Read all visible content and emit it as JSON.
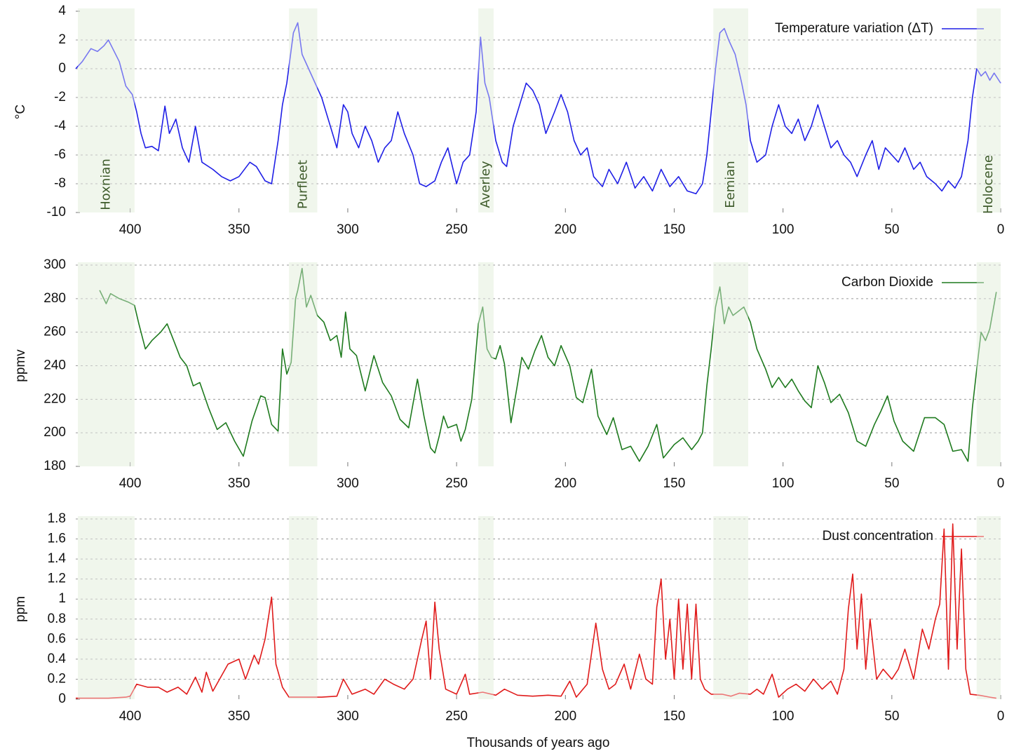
{
  "chart_data": [
    {
      "type": "line",
      "ylabel": "°C",
      "xlim": [
        425,
        0
      ],
      "xticks": [
        400,
        350,
        300,
        250,
        200,
        150,
        100,
        50,
        0
      ],
      "ylim": [
        -10,
        4
      ],
      "yticks": [
        4,
        2,
        0,
        -2,
        -4,
        -6,
        -8,
        -10
      ],
      "grid": true,
      "legend": "upper right",
      "band_color": "#e6f1e0",
      "shaded_periods": [
        {
          "label": "Hoxnian",
          "start": 424,
          "end": 398
        },
        {
          "label": "Purfleet",
          "start": 327,
          "end": 314
        },
        {
          "label": "Averley",
          "start": 240,
          "end": 233
        },
        {
          "label": "Eemian",
          "start": 132,
          "end": 116
        },
        {
          "label": "Holocene",
          "start": 11,
          "end": 0
        }
      ],
      "x": [
        425,
        422,
        418,
        415,
        412,
        410,
        408,
        405,
        402,
        399,
        397,
        395,
        393,
        390,
        387,
        384,
        382,
        379,
        376,
        373,
        370,
        367,
        362,
        358,
        354,
        350,
        345,
        342,
        338,
        335,
        332,
        330,
        328,
        325,
        323,
        321,
        318,
        315,
        312,
        308,
        305,
        302,
        300,
        298,
        295,
        292,
        289,
        286,
        283,
        280,
        277,
        274,
        270,
        267,
        264,
        260,
        257,
        254,
        250,
        247,
        244,
        241,
        239,
        237,
        235,
        232,
        229,
        227,
        224,
        221,
        218,
        215,
        212,
        209,
        205,
        202,
        199,
        196,
        193,
        190,
        187,
        183,
        180,
        176,
        172,
        168,
        164,
        160,
        156,
        152,
        148,
        144,
        140,
        137,
        135,
        133,
        131,
        129,
        127,
        125,
        122,
        119,
        117,
        115,
        112,
        108,
        105,
        102,
        99,
        96,
        93,
        90,
        87,
        84,
        81,
        78,
        75,
        72,
        69,
        66,
        62,
        59,
        56,
        53,
        50,
        47,
        44,
        40,
        37,
        34,
        30,
        27,
        24,
        21,
        18,
        15,
        13,
        11,
        9,
        7,
        5,
        3,
        0
      ],
      "series": [
        {
          "name": "Temperature variation (ΔT)",
          "color": "#1f1fe6",
          "values": [
            0,
            0.5,
            1.4,
            1.2,
            1.6,
            2.0,
            1.4,
            0.5,
            -1.2,
            -1.8,
            -3,
            -4.5,
            -5.5,
            -5.4,
            -5.7,
            -2.6,
            -4.5,
            -3.5,
            -5.5,
            -6.5,
            -4,
            -6.5,
            -7,
            -7.5,
            -7.8,
            -7.5,
            -6.5,
            -6.8,
            -7.8,
            -8,
            -5,
            -2.5,
            -1,
            2.5,
            3.2,
            1,
            0,
            -1,
            -2,
            -4,
            -5.5,
            -2.5,
            -3,
            -4.5,
            -5.5,
            -4,
            -5,
            -6.5,
            -5.5,
            -5,
            -3,
            -4.5,
            -6,
            -8,
            -8.2,
            -7.8,
            -6.5,
            -5.5,
            -8,
            -6.5,
            -6,
            -3,
            2.2,
            -1,
            -2,
            -5,
            -6.5,
            -6.8,
            -4,
            -2.5,
            -1,
            -1.5,
            -2.5,
            -4.5,
            -3,
            -1.8,
            -3,
            -5,
            -6,
            -5.5,
            -7.5,
            -8.2,
            -7,
            -8,
            -6.5,
            -8.3,
            -7.5,
            -8.5,
            -7,
            -8.2,
            -7.5,
            -8.5,
            -8.7,
            -8,
            -6,
            -3,
            0,
            2.5,
            2.8,
            2,
            1,
            -1,
            -2.5,
            -5,
            -6.5,
            -6,
            -4,
            -2.5,
            -4,
            -4.5,
            -3.5,
            -5,
            -4,
            -2.5,
            -4,
            -5.5,
            -5,
            -6,
            -6.5,
            -7.5,
            -6,
            -5,
            -7,
            -5.5,
            -6,
            -6.5,
            -5.5,
            -7,
            -6.5,
            -7.5,
            -8,
            -8.5,
            -7.8,
            -8.3,
            -7.5,
            -5,
            -2,
            0,
            -0.5,
            -0.2,
            -0.8,
            -0.3,
            -1
          ]
        }
      ]
    },
    {
      "type": "line",
      "ylabel": "ppmv",
      "xlim": [
        425,
        0
      ],
      "xticks": [
        400,
        350,
        300,
        250,
        200,
        150,
        100,
        50,
        0
      ],
      "ylim": [
        180,
        300
      ],
      "yticks": [
        300,
        280,
        260,
        240,
        220,
        200,
        180
      ],
      "grid": true,
      "legend": "upper right",
      "x": [
        414,
        411,
        409,
        405,
        401,
        398,
        396,
        393,
        390,
        386,
        383,
        380,
        377,
        374,
        371,
        368,
        364,
        360,
        356,
        352,
        348,
        344,
        340,
        338,
        335,
        332,
        330,
        328,
        326,
        324,
        323,
        321,
        319,
        317,
        314,
        311,
        308,
        305,
        303,
        301,
        299,
        296,
        292,
        288,
        284,
        280,
        276,
        272,
        268,
        265,
        262,
        260,
        258,
        256,
        254,
        250,
        248,
        246,
        243,
        240,
        238,
        236,
        234,
        232,
        230,
        228,
        225,
        222,
        220,
        217,
        214,
        211,
        208,
        205,
        202,
        198,
        195,
        192,
        188,
        185,
        181,
        178,
        174,
        170,
        166,
        162,
        158,
        155,
        150,
        146,
        142,
        139,
        137,
        135,
        133,
        131,
        129,
        127,
        125,
        123,
        121,
        118,
        115,
        112,
        108,
        105,
        102,
        99,
        96,
        93,
        90,
        87,
        84,
        81,
        78,
        74,
        70,
        66,
        62,
        58,
        55,
        52,
        49,
        45,
        40,
        35,
        30,
        26,
        22,
        18,
        15,
        13,
        11,
        9,
        7,
        5,
        2
      ],
      "series": [
        {
          "name": "Carbon Dioxide",
          "color": "#1e7a1e",
          "values": [
            285,
            277,
            283,
            280,
            278,
            276,
            265,
            250,
            255,
            260,
            265,
            255,
            245,
            240,
            228,
            230,
            215,
            202,
            206,
            195,
            186,
            207,
            222,
            221,
            205,
            201,
            250,
            235,
            242,
            280,
            285,
            298,
            275,
            282,
            270,
            266,
            255,
            258,
            245,
            272,
            250,
            246,
            225,
            246,
            230,
            222,
            208,
            203,
            232,
            210,
            191,
            188,
            198,
            210,
            203,
            205,
            195,
            202,
            220,
            265,
            275,
            250,
            245,
            244,
            252,
            241,
            206,
            229,
            245,
            238,
            249,
            258,
            245,
            240,
            252,
            240,
            221,
            218,
            238,
            210,
            199,
            209,
            190,
            192,
            183,
            192,
            205,
            185,
            193,
            197,
            190,
            195,
            200,
            228,
            250,
            275,
            287,
            265,
            275,
            270,
            272,
            275,
            266,
            250,
            238,
            227,
            233,
            227,
            232,
            225,
            219,
            215,
            240,
            230,
            218,
            223,
            212,
            195,
            192,
            205,
            213,
            222,
            207,
            195,
            189,
            209,
            209,
            205,
            189,
            190,
            183,
            215,
            238,
            260,
            255,
            262,
            284
          ]
        }
      ]
    },
    {
      "type": "line",
      "ylabel": "ppm",
      "xlabel": "Thousands of years ago",
      "xlim": [
        425,
        0
      ],
      "xticks": [
        400,
        350,
        300,
        250,
        200,
        150,
        100,
        50,
        0
      ],
      "ylim": [
        0,
        1.8
      ],
      "yticks": [
        1.8,
        1.6,
        1.4,
        1.2,
        1,
        0.8,
        0.6,
        0.4,
        0.2,
        0
      ],
      "grid": true,
      "legend": "upper right",
      "x": [
        425,
        410,
        402,
        400,
        397,
        392,
        387,
        383,
        378,
        374,
        370,
        367,
        365,
        362,
        355,
        350,
        347,
        343,
        341,
        338,
        335,
        333,
        330,
        327,
        320,
        312,
        305,
        302,
        298,
        292,
        288,
        283,
        279,
        274,
        270,
        266,
        264,
        262,
        260,
        258,
        255,
        250,
        246,
        244,
        238,
        232,
        228,
        222,
        215,
        208,
        202,
        198,
        195,
        190,
        186,
        183,
        180,
        177,
        173,
        170,
        166,
        163,
        160,
        158,
        156,
        154,
        152,
        150,
        148,
        146,
        144,
        142,
        140,
        138,
        136,
        133,
        128,
        124,
        120,
        115,
        112,
        109,
        105,
        102,
        98,
        94,
        90,
        86,
        82,
        78,
        75,
        72,
        70,
        68,
        66,
        64,
        62,
        60,
        57,
        54,
        50,
        47,
        44,
        40,
        36,
        33,
        30,
        28,
        26,
        24,
        22,
        20,
        18,
        16,
        14,
        10,
        5,
        2
      ],
      "series": [
        {
          "name": "Dust concentration",
          "color": "#e01b1b",
          "values": [
            0.01,
            0.01,
            0.02,
            0.03,
            0.15,
            0.12,
            0.12,
            0.07,
            0.12,
            0.05,
            0.22,
            0.07,
            0.27,
            0.08,
            0.35,
            0.4,
            0.2,
            0.44,
            0.35,
            0.6,
            1.02,
            0.35,
            0.12,
            0.02,
            0.02,
            0.02,
            0.03,
            0.2,
            0.05,
            0.1,
            0.05,
            0.2,
            0.15,
            0.1,
            0.2,
            0.6,
            0.78,
            0.2,
            0.97,
            0.5,
            0.1,
            0.05,
            0.25,
            0.05,
            0.07,
            0.04,
            0.1,
            0.04,
            0.03,
            0.04,
            0.03,
            0.18,
            0.02,
            0.15,
            0.76,
            0.3,
            0.1,
            0.15,
            0.35,
            0.1,
            0.45,
            0.2,
            0.15,
            0.92,
            1.2,
            0.4,
            0.8,
            0.2,
            1.0,
            0.3,
            0.95,
            0.2,
            0.95,
            0.2,
            0.1,
            0.05,
            0.05,
            0.03,
            0.06,
            0.05,
            0.1,
            0.05,
            0.25,
            0.02,
            0.1,
            0.15,
            0.08,
            0.2,
            0.1,
            0.18,
            0.05,
            0.3,
            0.9,
            1.25,
            0.5,
            1.05,
            0.3,
            0.8,
            0.2,
            0.3,
            0.2,
            0.3,
            0.5,
            0.2,
            0.7,
            0.5,
            0.8,
            0.95,
            1.7,
            0.3,
            1.75,
            0.5,
            1.5,
            0.3,
            0.05,
            0.04,
            0.02,
            0.01
          ]
        }
      ]
    }
  ]
}
